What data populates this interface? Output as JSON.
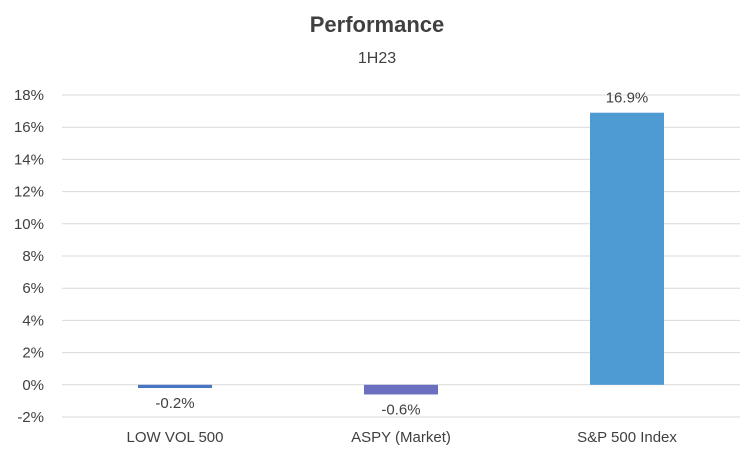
{
  "chart_data": {
    "type": "bar",
    "title": "Performance",
    "subtitle": "1H23",
    "categories": [
      "LOW VOL 500",
      "ASPY (Market)",
      "S&P 500 Index"
    ],
    "values": [
      -0.2,
      -0.6,
      16.9
    ],
    "data_labels": [
      "-0.2%",
      "-0.6%",
      "16.9%"
    ],
    "colors": [
      "#4a74c4",
      "#6a6fc0",
      "#4e9bd4"
    ],
    "ylim": [
      -2,
      18
    ],
    "yticks": [
      18,
      16,
      14,
      12,
      10,
      8,
      6,
      4,
      2,
      0,
      -2
    ],
    "ytick_labels": [
      "18%",
      "16%",
      "14%",
      "12%",
      "10%",
      "8%",
      "6%",
      "4%",
      "2%",
      "0%",
      "-2%"
    ],
    "grid": true,
    "legend": "none"
  }
}
